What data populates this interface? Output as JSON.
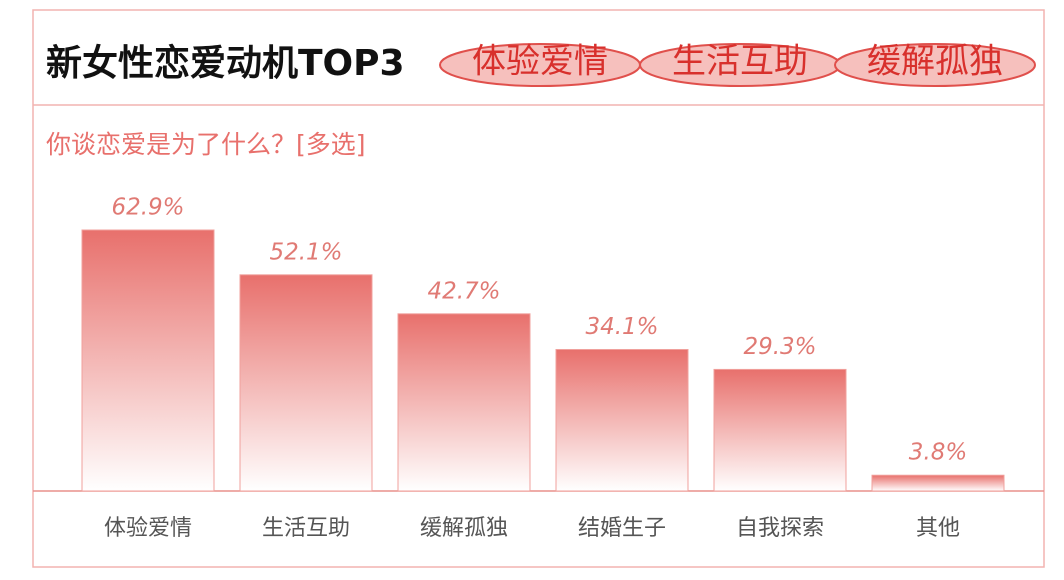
{
  "chart_data": {
    "type": "bar",
    "title": "新女性恋爱动机TOP3",
    "annotations": [
      "体验爱情",
      "生活互助",
      "缓解孤独"
    ],
    "subtitle": "你谈恋爱是为了什么？[多选]",
    "categories": [
      "体验爱情",
      "生活互助",
      "缓解孤独",
      "结婚生子",
      "自我探索",
      "其他"
    ],
    "values": [
      62.9,
      52.1,
      42.7,
      34.1,
      29.3,
      3.8
    ],
    "value_labels": [
      "62.9%",
      "52.1%",
      "42.7%",
      "34.1%",
      "29.3%",
      "3.8%"
    ],
    "color": "#e8706c"
  }
}
